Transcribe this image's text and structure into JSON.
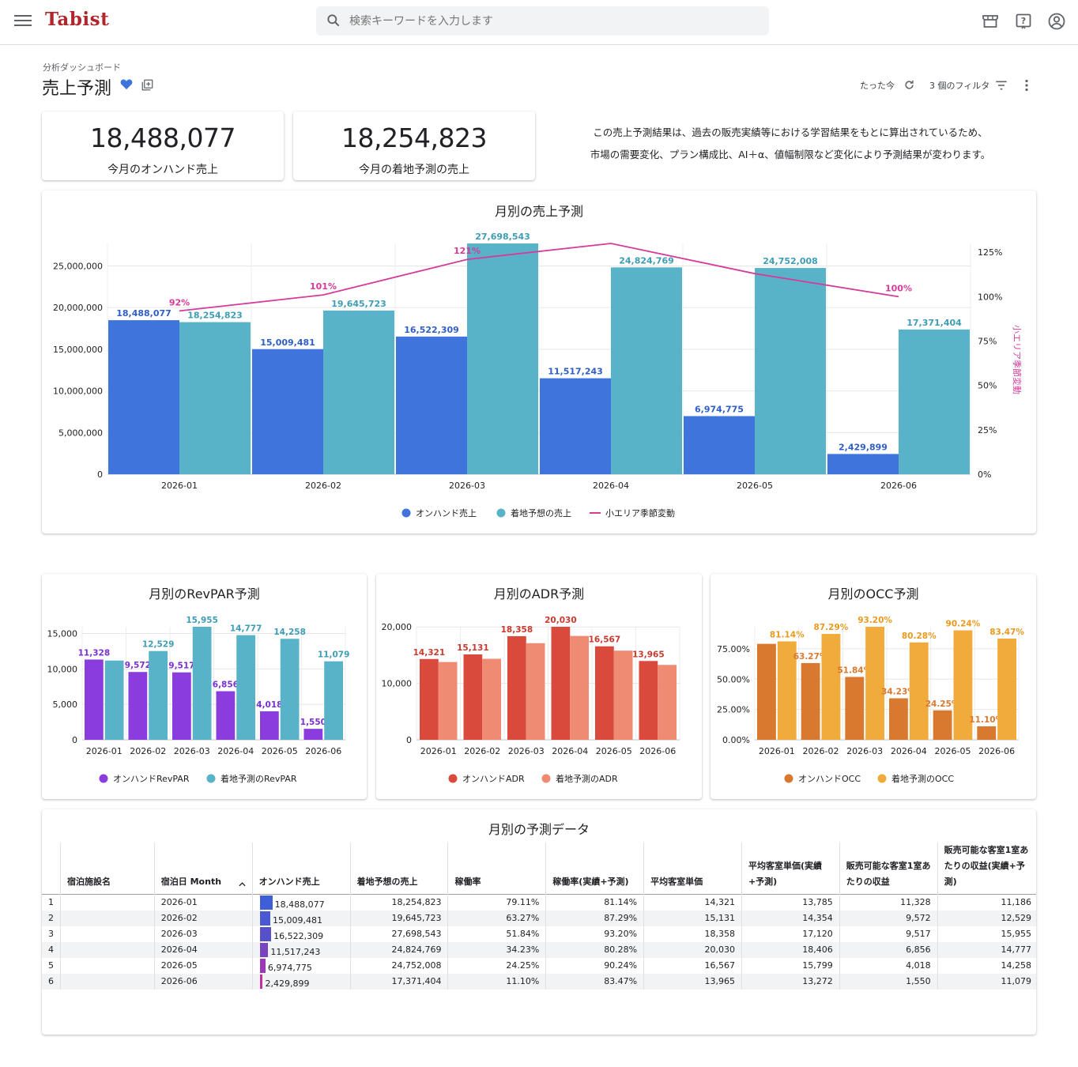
{
  "app": {
    "logo": "Tabist"
  },
  "search": {
    "placeholder": "検索キーワードを入力します"
  },
  "header": {
    "breadcrumb": "分析ダッシュボード",
    "title": "売上予測",
    "refresh_label": "たった今",
    "filter_label": "3 個のフィルタ"
  },
  "kpis": [
    {
      "value": "18,488,077",
      "label": "今月のオンハンド売上"
    },
    {
      "value": "18,254,823",
      "label": "今月の着地予測の売上"
    }
  ],
  "note": {
    "line1": "この売上予測結果は、過去の販売実績等における学習結果をもとに算出されているため、",
    "line2": "市場の需要変化、プラン構成比、AI＋α、値幅制限など変化により予測結果が変わります。"
  },
  "colors": {
    "onhand_sales": "#3f74dc",
    "forecast_sales": "#58b3c9",
    "seasonal": "#d63a9a",
    "onhand_revpar": "#8a3ddc",
    "forecast_revpar": "#58b3c9",
    "onhand_adr": "#d94a3d",
    "forecast_adr": "#ef8a73",
    "onhand_occ": "#d9782f",
    "forecast_occ": "#f0ab3b"
  },
  "chart_data": [
    {
      "type": "bar",
      "title": "月別の売上予測",
      "categories": [
        "2026-01",
        "2026-02",
        "2026-03",
        "2026-04",
        "2026-05",
        "2026-06"
      ],
      "series": [
        {
          "name": "オンハンド売上",
          "values": [
            18488077,
            15009481,
            16522309,
            11517243,
            6974775,
            2429899
          ],
          "labels": [
            "18,488,077",
            "15,009,481",
            "16,522,309",
            "11,517,243",
            "6,974,775",
            "2,429,899"
          ]
        },
        {
          "name": "着地予想の売上",
          "values": [
            18254823,
            19645723,
            27698543,
            24824769,
            24752008,
            17371404
          ],
          "labels": [
            "18,254,823",
            "19,645,723",
            "27,698,543",
            "24,824,769",
            "24,752,008",
            "17,371,404"
          ]
        }
      ],
      "line_series": {
        "name": "小エリア季節変動",
        "values": [
          92,
          101,
          121,
          130,
          113,
          100
        ],
        "labels": [
          "92%",
          "101%",
          "121%",
          "",
          "",
          "100%"
        ],
        "axis": "right"
      },
      "yticks": [
        "0",
        "5,000,000",
        "10,000,000",
        "15,000,000",
        "20,000,000",
        "25,000,000"
      ],
      "ylim": [
        0,
        27700000
      ],
      "y2ticks": [
        "0%",
        "25%",
        "50%",
        "75%",
        "100%",
        "125%"
      ],
      "y2lim": [
        0,
        130
      ],
      "y2label": "小エリア季節変動",
      "legend": "bottom"
    },
    {
      "type": "bar",
      "title": "月別のRevPAR予測",
      "categories": [
        "2026-01",
        "2026-02",
        "2026-03",
        "2026-04",
        "2026-05",
        "2026-06"
      ],
      "series": [
        {
          "name": "オンハンドRevPAR",
          "values": [
            11328,
            9572,
            9517,
            6856,
            4018,
            1550
          ],
          "labels": [
            "11,328",
            "9,572",
            "9,517",
            "6,856",
            "4,018",
            "1,550"
          ]
        },
        {
          "name": "着地予測のRevPAR",
          "values": [
            11186,
            12529,
            15955,
            14777,
            14258,
            11079
          ],
          "labels": [
            "",
            "12,529",
            "15,955",
            "14,777",
            "14,258",
            "11,079"
          ]
        }
      ],
      "yticks": [
        "0",
        "5,000",
        "10,000",
        "15,000"
      ],
      "ylim": [
        0,
        15955
      ],
      "legend": "bottom"
    },
    {
      "type": "bar",
      "title": "月別のADR予測",
      "categories": [
        "2026-01",
        "2026-02",
        "2026-03",
        "2026-04",
        "2026-05",
        "2026-06"
      ],
      "series": [
        {
          "name": "オンハンドADR",
          "values": [
            14321,
            15131,
            18358,
            20030,
            16567,
            13965
          ],
          "labels": [
            "14,321",
            "15,131",
            "18,358",
            "20,030",
            "16,567",
            "13,965"
          ]
        },
        {
          "name": "着地予測のADR",
          "values": [
            13785,
            14354,
            17120,
            18406,
            15799,
            13272
          ],
          "labels": [
            "",
            "",
            "",
            "",
            "",
            ""
          ]
        }
      ],
      "yticks": [
        "0",
        "10,000",
        "20,000"
      ],
      "ylim": [
        0,
        20030
      ],
      "legend": "bottom"
    },
    {
      "type": "bar",
      "title": "月別のOCC予測",
      "categories": [
        "2026-01",
        "2026-02",
        "2026-03",
        "2026-04",
        "2026-05",
        "2026-06"
      ],
      "series": [
        {
          "name": "オンハンドOCC",
          "values": [
            79.11,
            63.27,
            51.84,
            34.23,
            24.25,
            11.1
          ],
          "labels": [
            "",
            "63.27%",
            "51.84%",
            "34.23%",
            "24.25%",
            "11.10%"
          ]
        },
        {
          "name": "着地予測のOCC",
          "values": [
            81.14,
            87.29,
            93.2,
            80.28,
            90.24,
            83.47
          ],
          "labels": [
            "81.14%",
            "87.29%",
            "93.20%",
            "80.28%",
            "90.24%",
            "83.47%"
          ]
        }
      ],
      "yticks": [
        "0.00%",
        "25.00%",
        "50.00%",
        "75.00%"
      ],
      "ylim": [
        0,
        93.2
      ],
      "legend": "bottom"
    }
  ],
  "table": {
    "title": "月別の予測データ",
    "sort_icon": "chevron-up-icon",
    "columns": [
      "",
      "宿泊施設名",
      "宿泊日 Month",
      "オンハンド売上",
      "着地予想の売上",
      "稼働率",
      "稼働率(実績+予測)",
      "平均客室単価",
      "平均客室単価(実績+予測)",
      "販売可能な客室1室あたりの収益",
      "販売可能な客室1室あたりの収益(実績+予測)"
    ],
    "rows": [
      {
        "n": "1",
        "name": "",
        "month": "2026-01",
        "onhand": "18,488,077",
        "onhand_v": 18488077,
        "forecast": "18,254,823",
        "occ": "79.11%",
        "occ2": "81.14%",
        "adr": "14,321",
        "adr2": "13,785",
        "revpar": "11,328",
        "revpar2": "11,186"
      },
      {
        "n": "2",
        "name": "",
        "month": "2026-02",
        "onhand": "15,009,481",
        "onhand_v": 15009481,
        "forecast": "19,645,723",
        "occ": "63.27%",
        "occ2": "87.29%",
        "adr": "15,131",
        "adr2": "14,354",
        "revpar": "9,572",
        "revpar2": "12,529"
      },
      {
        "n": "3",
        "name": "",
        "month": "2026-03",
        "onhand": "16,522,309",
        "onhand_v": 16522309,
        "forecast": "27,698,543",
        "occ": "51.84%",
        "occ2": "93.20%",
        "adr": "18,358",
        "adr2": "17,120",
        "revpar": "9,517",
        "revpar2": "15,955"
      },
      {
        "n": "4",
        "name": "",
        "month": "2026-04",
        "onhand": "11,517,243",
        "onhand_v": 11517243,
        "forecast": "24,824,769",
        "occ": "34.23%",
        "occ2": "80.28%",
        "adr": "20,030",
        "adr2": "18,406",
        "revpar": "6,856",
        "revpar2": "14,777"
      },
      {
        "n": "5",
        "name": "",
        "month": "2026-05",
        "onhand": "6,974,775",
        "onhand_v": 6974775,
        "forecast": "24,752,008",
        "occ": "24.25%",
        "occ2": "90.24%",
        "adr": "16,567",
        "adr2": "15,799",
        "revpar": "4,018",
        "revpar2": "14,258"
      },
      {
        "n": "6",
        "name": "",
        "month": "2026-06",
        "onhand": "2,429,899",
        "onhand_v": 2429899,
        "forecast": "17,371,404",
        "occ": "11.10%",
        "occ2": "83.47%",
        "adr": "13,965",
        "adr2": "13,272",
        "revpar": "1,550",
        "revpar2": "11,079"
      }
    ],
    "bar_colors": [
      "#3f5fd9",
      "#4a58d2",
      "#5650c9",
      "#7a44c0",
      "#9a3ab4",
      "#c2309d"
    ]
  }
}
